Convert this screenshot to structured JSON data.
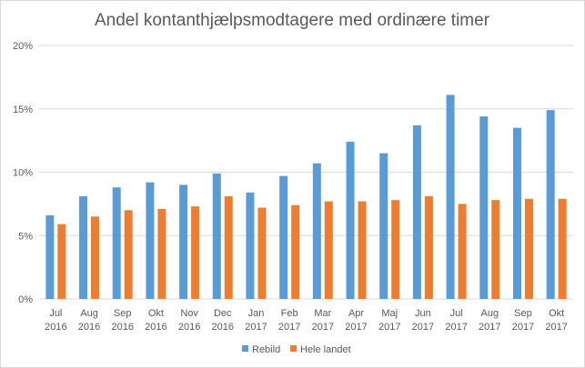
{
  "chart_data": {
    "type": "bar",
    "title": "Andel kontanthjælpsmodtagere med ordinære timer",
    "xlabel": "",
    "ylabel": "",
    "categories": [
      [
        "Jul",
        "2016"
      ],
      [
        "Aug",
        "2016"
      ],
      [
        "Sep",
        "2016"
      ],
      [
        "Okt",
        "2016"
      ],
      [
        "Nov",
        "2016"
      ],
      [
        "Dec",
        "2016"
      ],
      [
        "Jan",
        "2017"
      ],
      [
        "Feb",
        "2017"
      ],
      [
        "Mar",
        "2017"
      ],
      [
        "Apr",
        "2017"
      ],
      [
        "Maj",
        "2017"
      ],
      [
        "Jun",
        "2017"
      ],
      [
        "Jul",
        "2017"
      ],
      [
        "Aug",
        "2017"
      ],
      [
        "Sep",
        "2017"
      ],
      [
        "Okt",
        "2017"
      ]
    ],
    "series": [
      {
        "name": "Rebild",
        "color": "#5b9bd5",
        "values": [
          6.6,
          8.1,
          8.8,
          9.2,
          9.0,
          9.9,
          8.4,
          9.7,
          10.7,
          12.4,
          11.5,
          13.7,
          16.1,
          14.4,
          13.5,
          14.9
        ]
      },
      {
        "name": "Hele landet",
        "color": "#ed7d31",
        "values": [
          5.9,
          6.5,
          7.0,
          7.1,
          7.3,
          8.1,
          7.2,
          7.4,
          7.7,
          7.7,
          7.8,
          8.1,
          7.5,
          7.8,
          7.9,
          7.9
        ]
      }
    ],
    "ylim": [
      0,
      20
    ],
    "yticks": [
      0,
      5,
      10,
      15,
      20
    ],
    "ytick_labels": [
      "0%",
      "5%",
      "10%",
      "15%",
      "20%"
    ],
    "grid": true,
    "legend_position": "bottom"
  }
}
